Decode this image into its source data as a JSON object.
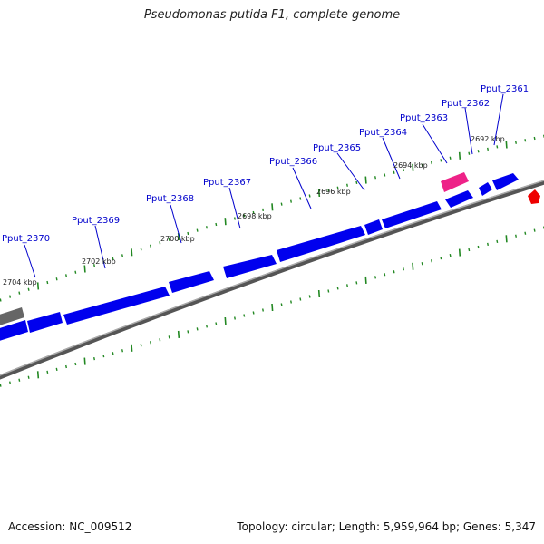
{
  "title": "Pseudomonas putida F1, complete genome",
  "footer": {
    "accession": "Accession: NC_009512",
    "summary": "Topology: circular; Length: 5,959,964 bp; Genes: 5,347"
  },
  "colors": {
    "gene": "#0000ee",
    "gene_top": "#5555ff",
    "rna_gene": "#ee2288",
    "grey_gene": "#666666",
    "backbone": "#888888",
    "tick": "#228822",
    "marker": "#ee0000",
    "label": "#0000cc"
  },
  "gene_labels": [
    "Pput_2370",
    "Pput_2369",
    "Pput_2368",
    "Pput_2367",
    "Pput_2366",
    "Pput_2365",
    "Pput_2364",
    "Pput_2363",
    "Pput_2362",
    "Pput_2361"
  ],
  "kbp_labels": [
    "2704 kbp",
    "2702 kbp",
    "2700 kbp",
    "2698 kbp",
    "2696 kbp",
    "2694 kbp",
    "2692 kbp"
  ]
}
